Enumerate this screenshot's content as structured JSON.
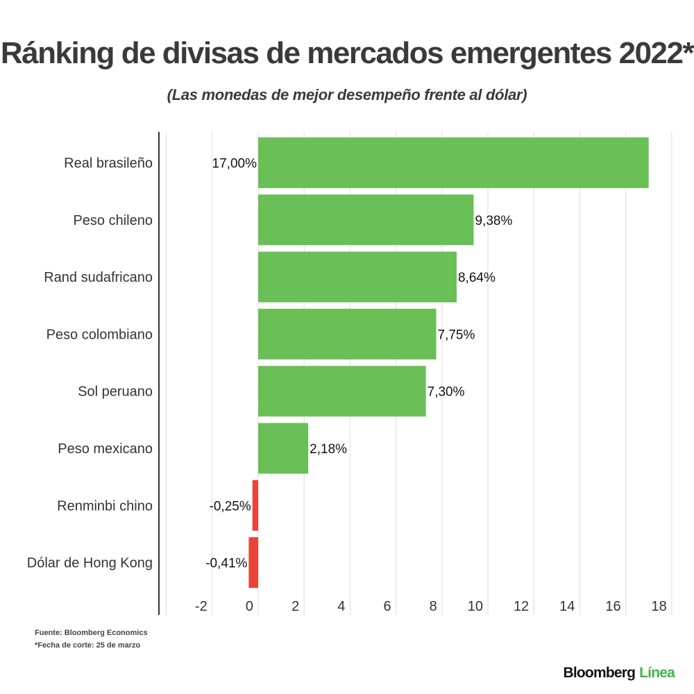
{
  "title": "Ránking de divisas de mercados emergentes 2022*",
  "subtitle": "(Las monedas de mejor desempeño frente al dólar)",
  "chart_data": {
    "type": "bar",
    "orientation": "horizontal",
    "categories": [
      "Real brasileño",
      "Peso chileno",
      "Rand sudafricano",
      "Peso colombiano",
      "Sol peruano",
      "Peso mexicano",
      "Renminbi chino",
      "Dólar de Hong Kong"
    ],
    "values": [
      17.0,
      9.38,
      8.64,
      7.75,
      7.3,
      2.18,
      -0.25,
      -0.41
    ],
    "data_labels": [
      "17,00%",
      "9,38%",
      "8,64%",
      "7,75%",
      "7,30%",
      "2,18%",
      "-0,25%",
      "-0,41%"
    ],
    "xlim": [
      -4,
      18
    ],
    "x_ticks": [
      -2,
      0,
      2,
      4,
      6,
      8,
      10,
      12,
      14,
      16,
      18
    ],
    "grid": "vertical",
    "colors": {
      "positive": "#6abf56",
      "negative": "#e8443a",
      "grid": "#dddddd",
      "axis": "#333333"
    }
  },
  "footnotes": {
    "source": "Fuente: Bloomberg Economics",
    "note": "*Fecha de corte: 25 de marzo"
  },
  "brand": {
    "name": "Bloomberg",
    "suffix": "Línea"
  }
}
